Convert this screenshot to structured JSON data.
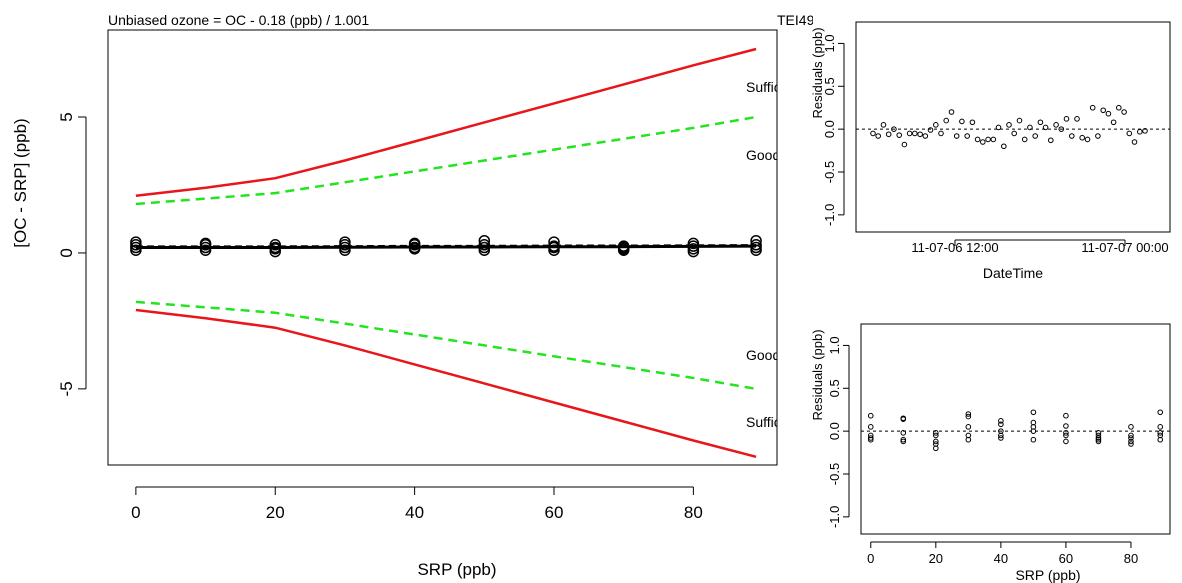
{
  "main_plot": {
    "title": "Unbiased ozone = OC - 0.18 (ppb) / 1.001",
    "corner_label": "TEI49",
    "xlabel": "SRP (ppb)",
    "ylabel": "[OC - SRP] (ppb)",
    "xlim": [
      -4,
      92
    ],
    "ylim": [
      -7.8,
      8.2
    ],
    "xticks": [
      0,
      20,
      40,
      60,
      80
    ],
    "yticks": [
      -5,
      0,
      5
    ],
    "band_labels": {
      "suff_upper": "Sufficient",
      "good_upper": "Good",
      "good_lower": "Good",
      "suff_lower": "Sufficient"
    },
    "colors": {
      "sufficient": "#e8161b",
      "good": "#22e41f",
      "fit": "#000000"
    }
  },
  "residuals_time_plot": {
    "xlabel": "DateTime",
    "ylabel": "Residuals (ppb)",
    "xtick_labels": [
      "11-07-06 12:00",
      "11-07-07 00:00"
    ],
    "yticks": [
      -1.0,
      -0.5,
      0.0,
      0.5,
      1.0
    ],
    "ytick_labels": [
      "-1.0",
      "-0.5",
      "0.0",
      "0.5",
      "1.0"
    ],
    "ylim": [
      -1.2,
      1.25
    ]
  },
  "residuals_srp_plot": {
    "xlabel": "SRP (ppb)",
    "ylabel": "Residuals (ppb)",
    "xticks": [
      0,
      20,
      40,
      60,
      80
    ],
    "xlim": [
      -3,
      92
    ],
    "yticks": [
      -1.0,
      -0.5,
      0.0,
      0.5,
      1.0
    ],
    "ytick_labels": [
      "-1.0",
      "-0.5",
      "0.0",
      "0.5",
      "1.0"
    ],
    "ylim": [
      -1.2,
      1.25
    ]
  },
  "chart_data": [
    {
      "type": "line",
      "title": "Unbiased ozone = OC - 0.18 (ppb) / 1.001",
      "xlabel": "SRP (ppb)",
      "ylabel": "[OC - SRP] (ppb)",
      "x": [
        0,
        10,
        20,
        30,
        40,
        50,
        60,
        70,
        80,
        89
      ],
      "series": [
        {
          "name": "Sufficient",
          "values": [
            2.1,
            2.4,
            2.75,
            3.4,
            4.1,
            4.8,
            5.5,
            6.2,
            6.9,
            7.5
          ]
        },
        {
          "name": "Good",
          "values": [
            1.8,
            2.0,
            2.2,
            2.6,
            3.0,
            3.4,
            3.8,
            4.2,
            4.6,
            5.0
          ]
        },
        {
          "name": "Good",
          "values": [
            -1.8,
            -2.0,
            -2.2,
            -2.6,
            -3.0,
            -3.4,
            -3.8,
            -4.2,
            -4.6,
            -5.0
          ]
        },
        {
          "name": "Sufficient",
          "values": [
            -2.1,
            -2.4,
            -2.75,
            -3.4,
            -4.1,
            -4.8,
            -5.5,
            -6.2,
            -6.9,
            -7.5
          ]
        },
        {
          "values": [
            0.2,
            0.2,
            0.2,
            0.21,
            0.22,
            0.22,
            0.23,
            0.23,
            0.24,
            0.25
          ]
        }
      ],
      "points_x": [
        0,
        0,
        0,
        0,
        10,
        10,
        10,
        10,
        20,
        20,
        20,
        20,
        30,
        30,
        30,
        30,
        40,
        40,
        40,
        40,
        50,
        50,
        50,
        50,
        60,
        60,
        60,
        60,
        70,
        70,
        70,
        70,
        80,
        80,
        80,
        80,
        89,
        89,
        89,
        89
      ],
      "points_y": [
        0.1,
        0.2,
        0.3,
        0.4,
        0.1,
        0.2,
        0.3,
        0.35,
        0.05,
        0.15,
        0.2,
        0.3,
        0.1,
        0.2,
        0.3,
        0.4,
        0.15,
        0.2,
        0.3,
        0.35,
        0.1,
        0.2,
        0.3,
        0.45,
        0.1,
        0.2,
        0.25,
        0.4,
        0.1,
        0.15,
        0.2,
        0.25,
        0.05,
        0.15,
        0.25,
        0.35,
        0.1,
        0.2,
        0.3,
        0.45
      ],
      "xlim": [
        -4,
        92
      ],
      "ylim": [
        -7.8,
        8.2
      ]
    },
    {
      "type": "scatter",
      "xlabel": "DateTime",
      "ylabel": "Residuals (ppb)",
      "x_tick_labels": [
        "11-07-06 12:00",
        "11-07-07 00:00"
      ],
      "y": [
        -0.05,
        -0.08,
        0.05,
        -0.06,
        0.0,
        -0.07,
        -0.18,
        -0.05,
        -0.05,
        -0.06,
        -0.08,
        -0.01,
        0.05,
        -0.05,
        0.1,
        0.2,
        -0.08,
        0.09,
        -0.08,
        0.08,
        -0.12,
        -0.15,
        -0.12,
        -0.12,
        0.02,
        -0.2,
        0.05,
        -0.05,
        0.1,
        -0.12,
        0.02,
        -0.08,
        0.08,
        0.02,
        -0.13,
        0.05,
        0.0,
        0.12,
        -0.08,
        0.12,
        -0.1,
        -0.12,
        0.25,
        -0.08,
        0.22,
        0.18,
        0.08,
        0.25,
        0.2,
        -0.05,
        -0.15,
        -0.03,
        -0.02
      ],
      "reference_line": 0,
      "ylim": [
        -1.2,
        1.25
      ]
    },
    {
      "type": "scatter",
      "xlabel": "SRP (ppb)",
      "ylabel": "Residuals (ppb)",
      "x": [
        0,
        0,
        0,
        0,
        0,
        10,
        10,
        10,
        10,
        10,
        20,
        20,
        20,
        20,
        20,
        30,
        30,
        30,
        30,
        30,
        40,
        40,
        40,
        40,
        40,
        50,
        50,
        50,
        50,
        50,
        60,
        60,
        60,
        60,
        60,
        70,
        70,
        70,
        70,
        70,
        80,
        80,
        80,
        80,
        80,
        89,
        89,
        89,
        89,
        89
      ],
      "y": [
        0.18,
        0.05,
        -0.05,
        -0.08,
        -0.1,
        0.15,
        0.14,
        -0.02,
        -0.1,
        -0.12,
        -0.02,
        -0.05,
        -0.12,
        -0.15,
        -0.2,
        0.2,
        0.17,
        0.05,
        -0.05,
        -0.1,
        0.12,
        0.08,
        0.0,
        -0.05,
        -0.08,
        0.22,
        0.1,
        0.05,
        0.0,
        -0.1,
        0.18,
        0.06,
        -0.02,
        -0.05,
        -0.12,
        -0.02,
        -0.05,
        -0.08,
        -0.1,
        -0.12,
        0.05,
        -0.05,
        -0.08,
        -0.12,
        -0.15,
        0.22,
        0.05,
        -0.02,
        -0.05,
        -0.1
      ],
      "reference_line": 0,
      "xlim": [
        -3,
        92
      ],
      "ylim": [
        -1.2,
        1.25
      ]
    }
  ]
}
